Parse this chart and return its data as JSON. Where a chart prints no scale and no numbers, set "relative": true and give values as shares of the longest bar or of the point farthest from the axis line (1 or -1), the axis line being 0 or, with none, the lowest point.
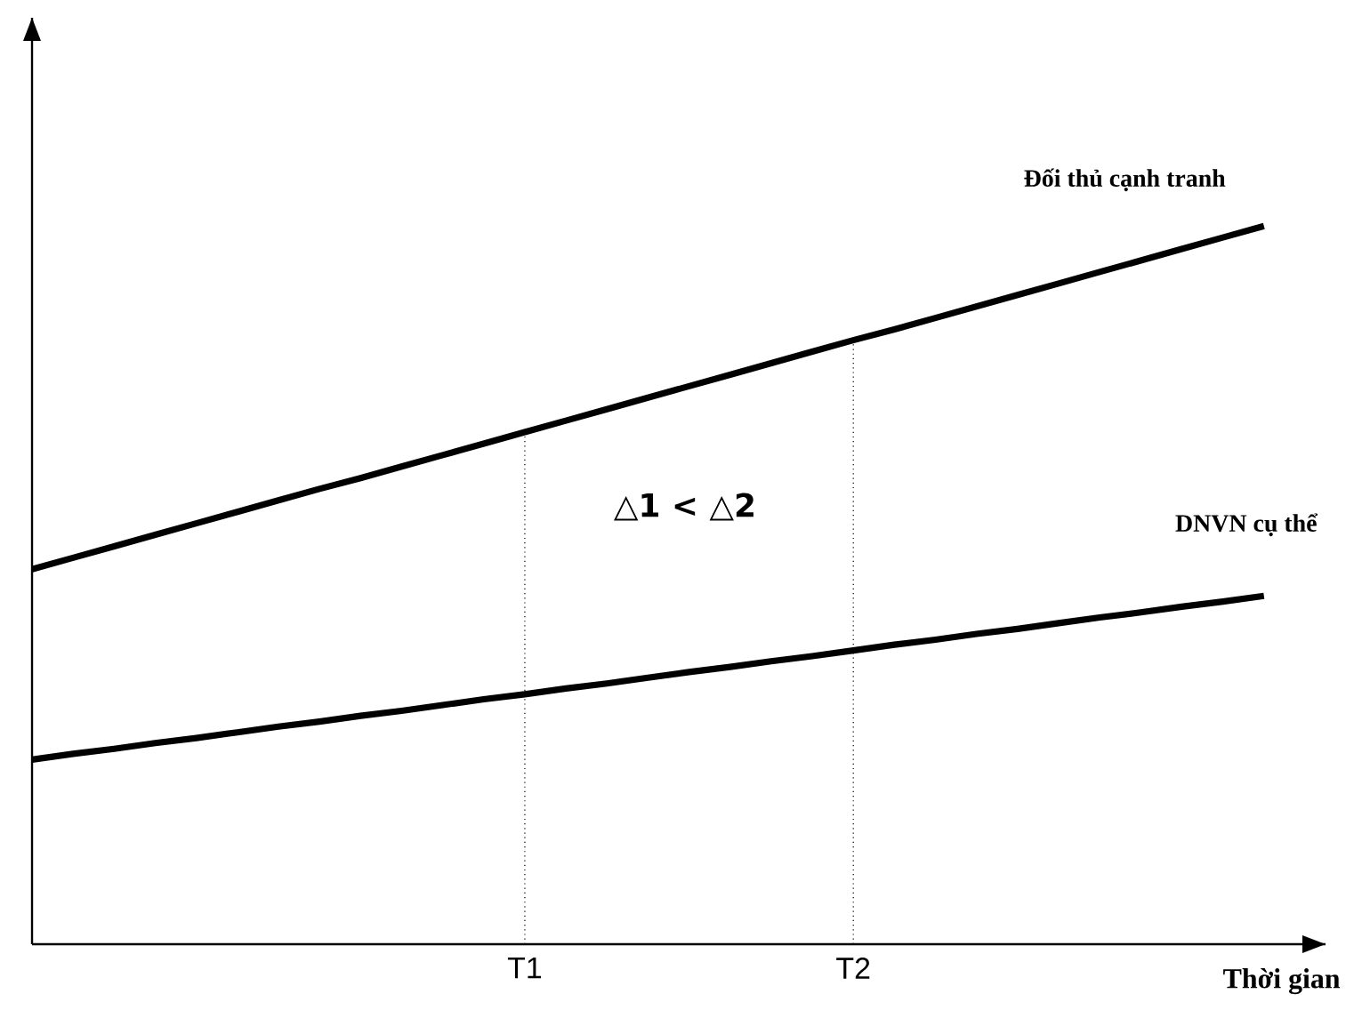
{
  "chart_data": {
    "type": "line",
    "relative": true,
    "xlabel": "Thời gian",
    "line_style": "solid",
    "categories": [
      null,
      null,
      null,
      null,
      null,
      null,
      null,
      null,
      null,
      null,
      null,
      null,
      "T1",
      null,
      null,
      null,
      null,
      null,
      null,
      null,
      "T2",
      null,
      null,
      null,
      null,
      null,
      null,
      null,
      null,
      null,
      null
    ],
    "series": [
      {
        "name": "Đối thủ cạnh tranh",
        "color": "#000000",
        "values": [
          0.522,
          0.538,
          0.554,
          0.57,
          0.586,
          0.602,
          0.618,
          0.634,
          0.649,
          0.665,
          0.681,
          0.697,
          0.713,
          0.729,
          0.745,
          0.761,
          0.777,
          0.793,
          0.809,
          0.825,
          0.841,
          0.856,
          0.872,
          0.888,
          0.904,
          0.92,
          0.936,
          0.952,
          0.968,
          0.984,
          1
        ]
      },
      {
        "name": "DNVN cụ thể",
        "color": "#000000",
        "values": [
          0.257,
          0.265,
          0.272,
          0.28,
          0.287,
          0.295,
          0.303,
          0.31,
          0.318,
          0.325,
          0.333,
          0.341,
          0.348,
          0.356,
          0.363,
          0.371,
          0.379,
          0.386,
          0.394,
          0.401,
          0.409,
          0.417,
          0.424,
          0.432,
          0.439,
          0.447,
          0.455,
          0.462,
          0.47,
          0.477,
          0.485
        ]
      }
    ],
    "ref_lines": [
      {
        "axis": "x",
        "value": "T1",
        "color": "#000000",
        "line_style": "dotted"
      },
      {
        "axis": "x",
        "value": "T2",
        "color": "#000000",
        "line_style": "dotted"
      }
    ],
    "annotations": [
      "△1 < △2"
    ]
  }
}
